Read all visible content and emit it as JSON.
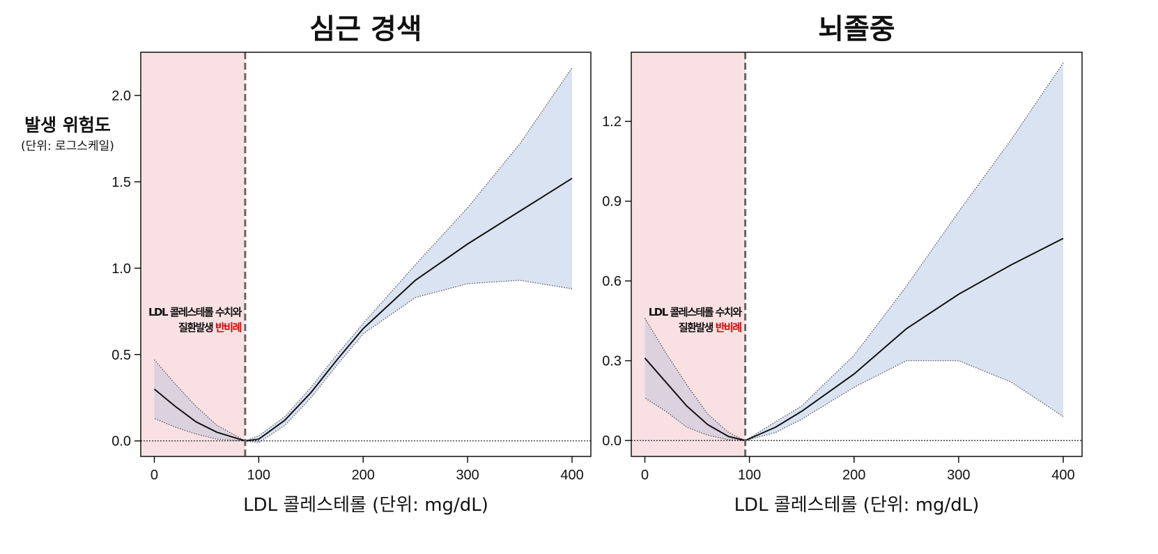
{
  "chart_data": [
    {
      "type": "line",
      "title": "심근 경색",
      "xlabel": "LDL 콜레스테롤 (단위: mg/dL)",
      "ylabel": "발생 위험도",
      "ylabel_sub": "(단위: 로그스케일)",
      "xlim": [
        -13,
        418
      ],
      "ylim": [
        -0.09,
        2.25
      ],
      "xticks": [
        "0",
        "100",
        "200",
        "300",
        "400"
      ],
      "yticks": [
        "0.0",
        "0.5",
        "1.0",
        "1.5",
        "2.0"
      ],
      "threshold": 87,
      "annotation": {
        "line1": "LDL 콜레스테롤 수치와",
        "line2a": "질환발생 ",
        "line2b": "반비례"
      },
      "left_segment": {
        "x": [
          0,
          20,
          40,
          60,
          87
        ],
        "estimate": [
          0.3,
          0.2,
          0.11,
          0.05,
          0
        ],
        "upper": [
          0.47,
          0.33,
          0.2,
          0.09,
          0
        ],
        "lower": [
          0.13,
          0.08,
          0.04,
          0.01,
          0
        ]
      },
      "right_segment": {
        "x": [
          87,
          100,
          125,
          150,
          175,
          200,
          250,
          300,
          350,
          400
        ],
        "estimate": [
          0,
          0.01,
          0.12,
          0.28,
          0.47,
          0.65,
          0.93,
          1.14,
          1.33,
          1.52
        ],
        "upper": [
          0,
          0.03,
          0.14,
          0.31,
          0.5,
          0.68,
          1.02,
          1.35,
          1.72,
          2.16
        ],
        "lower": [
          0,
          -0.01,
          0.09,
          0.25,
          0.44,
          0.62,
          0.83,
          0.91,
          0.93,
          0.88
        ]
      }
    },
    {
      "type": "line",
      "title": "뇌졸중",
      "xlabel": "LDL 콜레스테롤 (단위: mg/dL)",
      "xlim": [
        -13,
        418
      ],
      "ylim": [
        -0.06,
        1.46
      ],
      "xticks": [
        "0",
        "100",
        "200",
        "300",
        "400"
      ],
      "yticks": [
        "0.0",
        "0.3",
        "0.6",
        "0.9",
        "1.2"
      ],
      "threshold": 96,
      "annotation": {
        "line1": "LDL 콜레스테롤 수치와",
        "line2a": "질환발생 ",
        "line2b": "반비례"
      },
      "left_segment": {
        "x": [
          0,
          20,
          40,
          60,
          80,
          96
        ],
        "estimate": [
          0.31,
          0.22,
          0.13,
          0.06,
          0.015,
          0
        ],
        "upper": [
          0.46,
          0.33,
          0.21,
          0.1,
          0.03,
          0
        ],
        "lower": [
          0.16,
          0.11,
          0.05,
          0.02,
          0.003,
          0
        ]
      },
      "right_segment": {
        "x": [
          96,
          125,
          150,
          200,
          250,
          300,
          350,
          400
        ],
        "estimate": [
          0,
          0.05,
          0.11,
          0.25,
          0.42,
          0.55,
          0.66,
          0.76
        ],
        "upper": [
          0,
          0.07,
          0.13,
          0.32,
          0.58,
          0.86,
          1.13,
          1.42
        ],
        "lower": [
          0,
          0.03,
          0.08,
          0.2,
          0.3,
          0.3,
          0.22,
          0.09
        ]
      }
    }
  ],
  "colors": {
    "shade_low": "#f9e1e3",
    "band": "#dae3f2",
    "band_low": "#dcd1df",
    "highlight": "#e00000"
  }
}
